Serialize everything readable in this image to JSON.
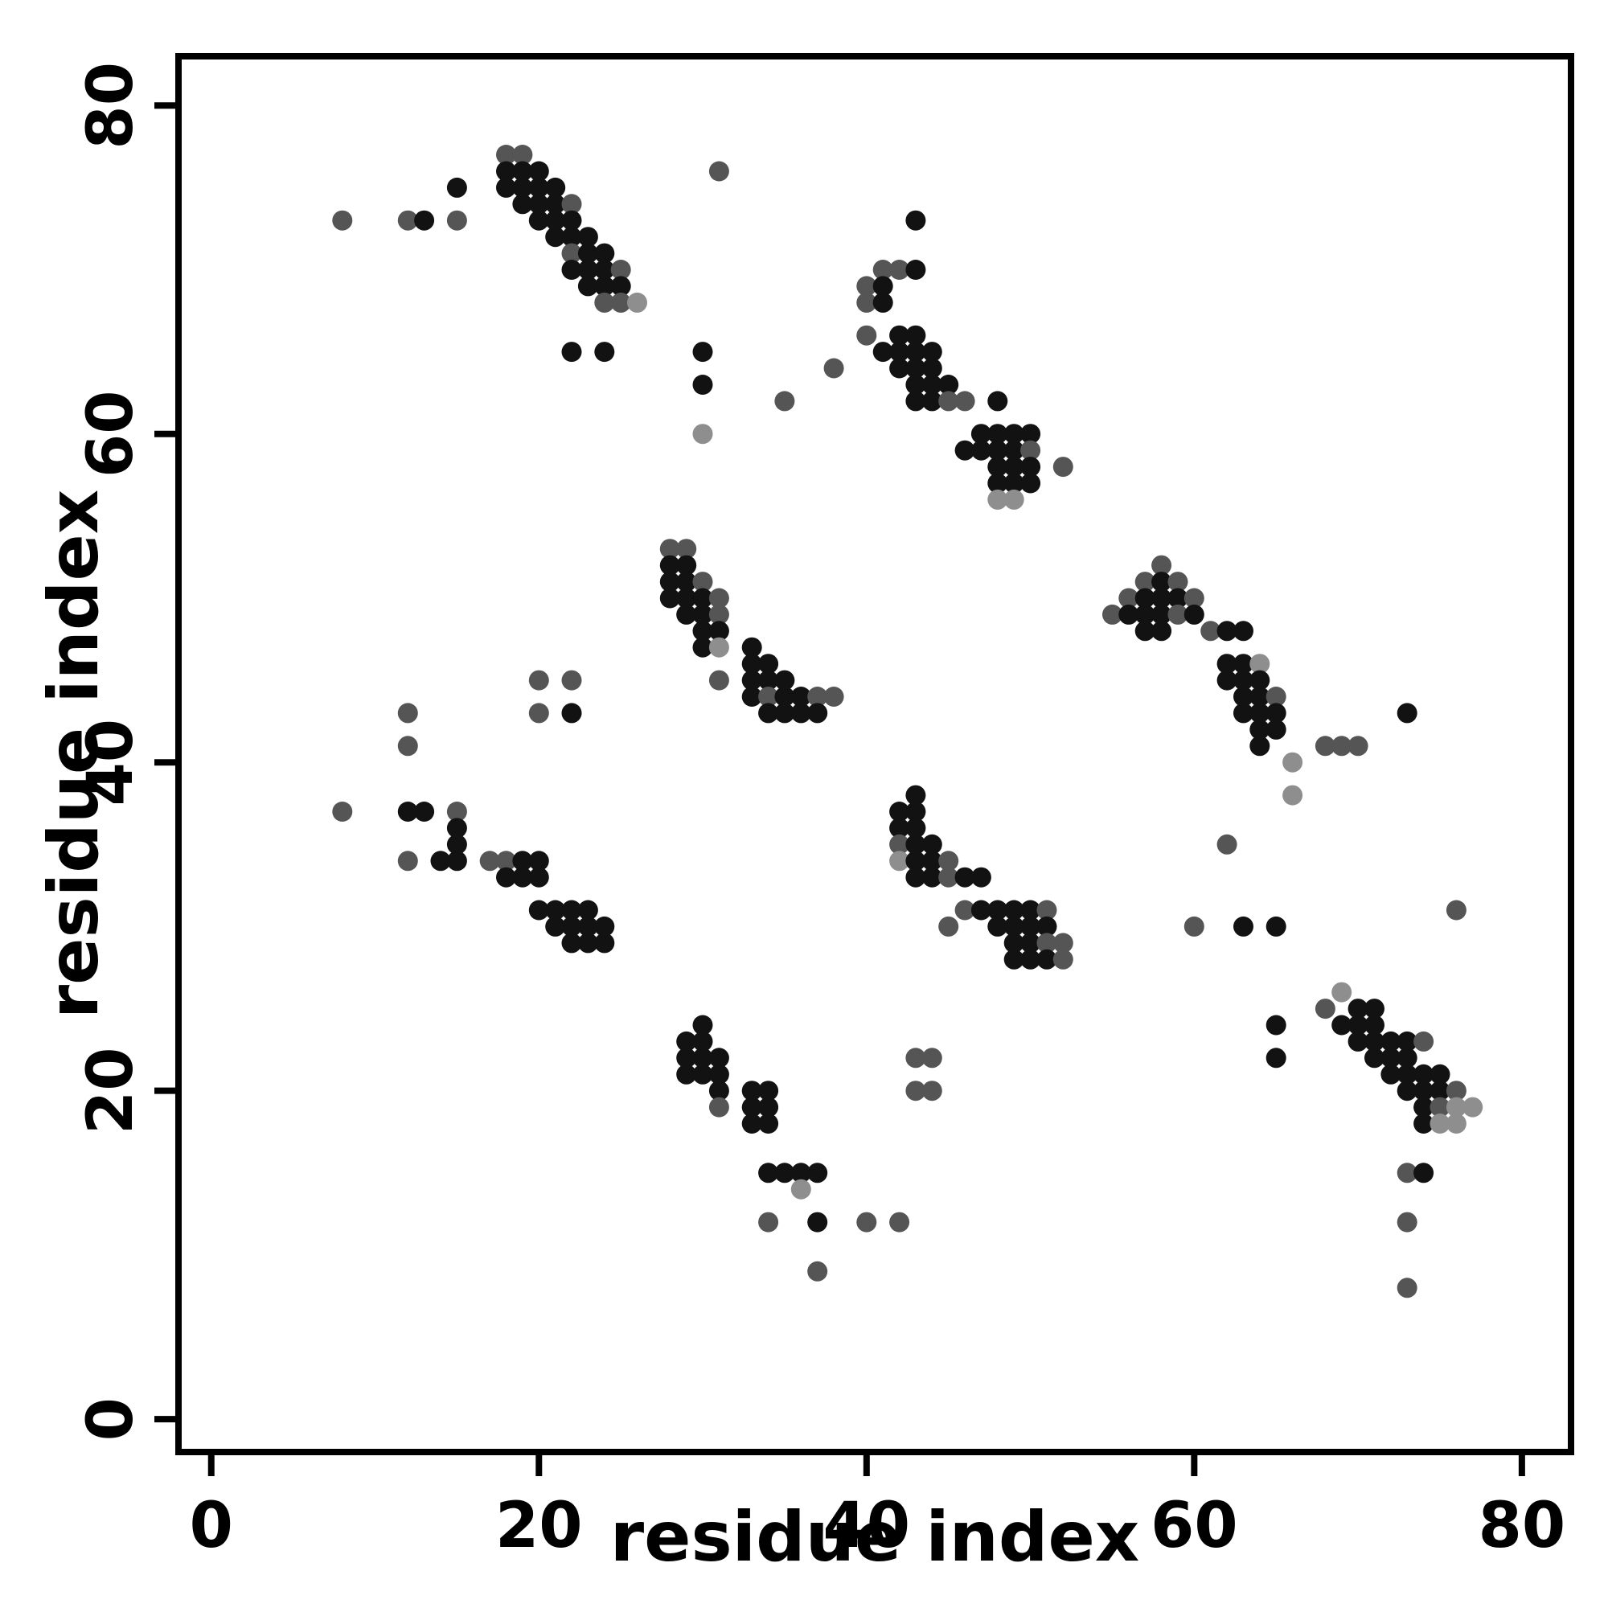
{
  "chart_data": {
    "type": "scatter",
    "title": "",
    "xlabel": "residue index",
    "ylabel": "residue index",
    "xlim": [
      -2,
      83
    ],
    "ylim": [
      -2,
      83
    ],
    "xticks": [
      0,
      20,
      40,
      60,
      80
    ],
    "yticks": [
      0,
      20,
      40,
      60,
      80
    ],
    "grid": false,
    "legend": "none",
    "marker": "filled-circle",
    "shade_levels": [
      "dark",
      "mid",
      "light"
    ],
    "shade_colors": [
      "#121212",
      "#555555",
      "#8e8e8e"
    ],
    "points": [
      [
        18,
        77,
        1
      ],
      [
        19,
        77,
        1
      ],
      [
        18,
        76,
        0
      ],
      [
        19,
        76,
        0
      ],
      [
        20,
        76,
        0
      ],
      [
        31,
        76,
        1
      ],
      [
        15,
        75,
        0
      ],
      [
        18,
        75,
        0
      ],
      [
        19,
        75,
        0
      ],
      [
        20,
        75,
        0
      ],
      [
        21,
        75,
        0
      ],
      [
        19,
        74,
        0
      ],
      [
        20,
        74,
        0
      ],
      [
        21,
        74,
        0
      ],
      [
        22,
        74,
        1
      ],
      [
        8,
        73,
        1
      ],
      [
        12,
        73,
        1
      ],
      [
        13,
        73,
        0
      ],
      [
        15,
        73,
        1
      ],
      [
        20,
        73,
        0
      ],
      [
        21,
        73,
        0
      ],
      [
        22,
        73,
        0
      ],
      [
        43,
        73,
        0
      ],
      [
        21,
        72,
        0
      ],
      [
        22,
        72,
        0
      ],
      [
        23,
        72,
        0
      ],
      [
        22,
        71,
        1
      ],
      [
        23,
        71,
        0
      ],
      [
        24,
        71,
        0
      ],
      [
        22,
        70,
        0
      ],
      [
        23,
        70,
        0
      ],
      [
        24,
        70,
        0
      ],
      [
        25,
        70,
        1
      ],
      [
        41,
        70,
        1
      ],
      [
        42,
        70,
        1
      ],
      [
        43,
        70,
        0
      ],
      [
        23,
        69,
        0
      ],
      [
        24,
        69,
        0
      ],
      [
        25,
        69,
        0
      ],
      [
        40,
        69,
        1
      ],
      [
        41,
        69,
        0
      ],
      [
        24,
        68,
        1
      ],
      [
        25,
        68,
        1
      ],
      [
        26,
        68,
        2
      ],
      [
        40,
        68,
        1
      ],
      [
        41,
        68,
        0
      ],
      [
        40,
        66,
        1
      ],
      [
        42,
        66,
        0
      ],
      [
        43,
        66,
        0
      ],
      [
        22,
        65,
        0
      ],
      [
        24,
        65,
        0
      ],
      [
        30,
        65,
        0
      ],
      [
        41,
        65,
        0
      ],
      [
        42,
        65,
        0
      ],
      [
        43,
        65,
        0
      ],
      [
        44,
        65,
        0
      ],
      [
        38,
        64,
        1
      ],
      [
        42,
        64,
        0
      ],
      [
        43,
        64,
        0
      ],
      [
        44,
        64,
        0
      ],
      [
        30,
        63,
        0
      ],
      [
        43,
        63,
        0
      ],
      [
        44,
        63,
        0
      ],
      [
        45,
        63,
        0
      ],
      [
        35,
        62,
        1
      ],
      [
        43,
        62,
        0
      ],
      [
        44,
        62,
        0
      ],
      [
        45,
        62,
        1
      ],
      [
        46,
        62,
        1
      ],
      [
        48,
        62,
        0
      ],
      [
        30,
        60,
        2
      ],
      [
        47,
        60,
        0
      ],
      [
        48,
        60,
        0
      ],
      [
        49,
        60,
        0
      ],
      [
        50,
        60,
        0
      ],
      [
        46,
        59,
        0
      ],
      [
        47,
        59,
        0
      ],
      [
        48,
        59,
        0
      ],
      [
        49,
        59,
        0
      ],
      [
        50,
        59,
        1
      ],
      [
        48,
        58,
        0
      ],
      [
        49,
        58,
        0
      ],
      [
        50,
        58,
        0
      ],
      [
        52,
        58,
        1
      ],
      [
        48,
        57,
        0
      ],
      [
        49,
        57,
        0
      ],
      [
        50,
        57,
        0
      ],
      [
        48,
        56,
        2
      ],
      [
        49,
        56,
        2
      ],
      [
        28,
        53,
        1
      ],
      [
        29,
        53,
        1
      ],
      [
        28,
        52,
        0
      ],
      [
        29,
        52,
        0
      ],
      [
        58,
        52,
        1
      ],
      [
        28,
        51,
        0
      ],
      [
        29,
        51,
        0
      ],
      [
        30,
        51,
        1
      ],
      [
        57,
        51,
        1
      ],
      [
        58,
        51,
        0
      ],
      [
        59,
        51,
        1
      ],
      [
        28,
        50,
        0
      ],
      [
        29,
        50,
        0
      ],
      [
        30,
        50,
        0
      ],
      [
        31,
        50,
        1
      ],
      [
        56,
        50,
        1
      ],
      [
        57,
        50,
        0
      ],
      [
        58,
        50,
        0
      ],
      [
        59,
        50,
        0
      ],
      [
        60,
        50,
        1
      ],
      [
        29,
        49,
        0
      ],
      [
        30,
        49,
        0
      ],
      [
        31,
        49,
        1
      ],
      [
        55,
        49,
        1
      ],
      [
        56,
        49,
        0
      ],
      [
        57,
        49,
        0
      ],
      [
        58,
        49,
        0
      ],
      [
        59,
        49,
        1
      ],
      [
        60,
        49,
        0
      ],
      [
        30,
        48,
        0
      ],
      [
        31,
        48,
        0
      ],
      [
        57,
        48,
        0
      ],
      [
        58,
        48,
        0
      ],
      [
        61,
        48,
        1
      ],
      [
        62,
        48,
        0
      ],
      [
        63,
        48,
        0
      ],
      [
        30,
        47,
        0
      ],
      [
        31,
        47,
        2
      ],
      [
        33,
        47,
        0
      ],
      [
        33,
        46,
        0
      ],
      [
        34,
        46,
        0
      ],
      [
        62,
        46,
        0
      ],
      [
        63,
        46,
        0
      ],
      [
        64,
        46,
        2
      ],
      [
        20,
        45,
        1
      ],
      [
        22,
        45,
        1
      ],
      [
        31,
        45,
        1
      ],
      [
        33,
        45,
        0
      ],
      [
        34,
        45,
        0
      ],
      [
        35,
        45,
        0
      ],
      [
        62,
        45,
        0
      ],
      [
        63,
        45,
        0
      ],
      [
        64,
        45,
        0
      ],
      [
        33,
        44,
        0
      ],
      [
        34,
        44,
        1
      ],
      [
        35,
        44,
        0
      ],
      [
        36,
        44,
        0
      ],
      [
        37,
        44,
        1
      ],
      [
        38,
        44,
        1
      ],
      [
        63,
        44,
        0
      ],
      [
        64,
        44,
        0
      ],
      [
        65,
        44,
        1
      ],
      [
        12,
        43,
        1
      ],
      [
        20,
        43,
        1
      ],
      [
        22,
        43,
        0
      ],
      [
        34,
        43,
        0
      ],
      [
        35,
        43,
        0
      ],
      [
        36,
        43,
        0
      ],
      [
        37,
        43,
        0
      ],
      [
        63,
        43,
        0
      ],
      [
        64,
        43,
        0
      ],
      [
        65,
        43,
        0
      ],
      [
        73,
        43,
        0
      ],
      [
        64,
        42,
        0
      ],
      [
        65,
        42,
        0
      ],
      [
        12,
        41,
        1
      ],
      [
        64,
        41,
        0
      ],
      [
        68,
        41,
        1
      ],
      [
        69,
        41,
        1
      ],
      [
        70,
        41,
        1
      ],
      [
        66,
        40,
        2
      ],
      [
        43,
        38,
        0
      ],
      [
        66,
        38,
        2
      ],
      [
        8,
        37,
        1
      ],
      [
        12,
        37,
        0
      ],
      [
        13,
        37,
        0
      ],
      [
        15,
        37,
        1
      ],
      [
        42,
        37,
        0
      ],
      [
        43,
        37,
        0
      ],
      [
        15,
        36,
        0
      ],
      [
        42,
        36,
        0
      ],
      [
        43,
        36,
        0
      ],
      [
        15,
        35,
        0
      ],
      [
        42,
        35,
        1
      ],
      [
        43,
        35,
        0
      ],
      [
        44,
        35,
        0
      ],
      [
        62,
        35,
        1
      ],
      [
        12,
        34,
        1
      ],
      [
        14,
        34,
        0
      ],
      [
        15,
        34,
        0
      ],
      [
        17,
        34,
        1
      ],
      [
        18,
        34,
        1
      ],
      [
        19,
        34,
        0
      ],
      [
        20,
        34,
        0
      ],
      [
        42,
        34,
        2
      ],
      [
        43,
        34,
        0
      ],
      [
        44,
        34,
        0
      ],
      [
        45,
        34,
        1
      ],
      [
        18,
        33,
        0
      ],
      [
        19,
        33,
        0
      ],
      [
        20,
        33,
        0
      ],
      [
        43,
        33,
        0
      ],
      [
        44,
        33,
        0
      ],
      [
        45,
        33,
        1
      ],
      [
        46,
        33,
        0
      ],
      [
        47,
        33,
        0
      ],
      [
        20,
        31,
        0
      ],
      [
        21,
        31,
        0
      ],
      [
        22,
        31,
        0
      ],
      [
        23,
        31,
        0
      ],
      [
        46,
        31,
        1
      ],
      [
        47,
        31,
        0
      ],
      [
        48,
        31,
        0
      ],
      [
        49,
        31,
        0
      ],
      [
        50,
        31,
        0
      ],
      [
        51,
        31,
        1
      ],
      [
        76,
        31,
        1
      ],
      [
        21,
        30,
        0
      ],
      [
        22,
        30,
        0
      ],
      [
        23,
        30,
        0
      ],
      [
        24,
        30,
        0
      ],
      [
        45,
        30,
        1
      ],
      [
        48,
        30,
        0
      ],
      [
        49,
        30,
        0
      ],
      [
        50,
        30,
        0
      ],
      [
        51,
        30,
        0
      ],
      [
        60,
        30,
        1
      ],
      [
        63,
        30,
        0
      ],
      [
        65,
        30,
        0
      ],
      [
        22,
        29,
        0
      ],
      [
        23,
        29,
        0
      ],
      [
        24,
        29,
        0
      ],
      [
        49,
        29,
        0
      ],
      [
        50,
        29,
        0
      ],
      [
        51,
        29,
        1
      ],
      [
        52,
        29,
        1
      ],
      [
        49,
        28,
        0
      ],
      [
        50,
        28,
        0
      ],
      [
        51,
        28,
        0
      ],
      [
        52,
        28,
        1
      ],
      [
        69,
        26,
        2
      ],
      [
        68,
        25,
        1
      ],
      [
        70,
        25,
        0
      ],
      [
        71,
        25,
        0
      ],
      [
        30,
        24,
        0
      ],
      [
        65,
        24,
        0
      ],
      [
        69,
        24,
        0
      ],
      [
        70,
        24,
        0
      ],
      [
        71,
        24,
        0
      ],
      [
        29,
        23,
        0
      ],
      [
        30,
        23,
        0
      ],
      [
        70,
        23,
        0
      ],
      [
        71,
        23,
        0
      ],
      [
        72,
        23,
        0
      ],
      [
        73,
        23,
        0
      ],
      [
        74,
        23,
        1
      ],
      [
        29,
        22,
        0
      ],
      [
        30,
        22,
        0
      ],
      [
        31,
        22,
        0
      ],
      [
        43,
        22,
        1
      ],
      [
        44,
        22,
        1
      ],
      [
        65,
        22,
        0
      ],
      [
        71,
        22,
        0
      ],
      [
        72,
        22,
        0
      ],
      [
        73,
        22,
        0
      ],
      [
        29,
        21,
        0
      ],
      [
        30,
        21,
        0
      ],
      [
        31,
        21,
        0
      ],
      [
        72,
        21,
        0
      ],
      [
        73,
        21,
        0
      ],
      [
        74,
        21,
        0
      ],
      [
        75,
        21,
        0
      ],
      [
        31,
        20,
        0
      ],
      [
        33,
        20,
        0
      ],
      [
        34,
        20,
        0
      ],
      [
        43,
        20,
        1
      ],
      [
        44,
        20,
        1
      ],
      [
        73,
        20,
        0
      ],
      [
        74,
        20,
        0
      ],
      [
        75,
        20,
        0
      ],
      [
        76,
        20,
        1
      ],
      [
        31,
        19,
        1
      ],
      [
        33,
        19,
        0
      ],
      [
        34,
        19,
        0
      ],
      [
        74,
        19,
        0
      ],
      [
        75,
        19,
        1
      ],
      [
        76,
        19,
        2
      ],
      [
        77,
        19,
        2
      ],
      [
        33,
        18,
        0
      ],
      [
        34,
        18,
        0
      ],
      [
        74,
        18,
        0
      ],
      [
        75,
        18,
        2
      ],
      [
        76,
        18,
        2
      ],
      [
        34,
        15,
        0
      ],
      [
        35,
        15,
        0
      ],
      [
        36,
        15,
        0
      ],
      [
        37,
        15,
        0
      ],
      [
        73,
        15,
        1
      ],
      [
        74,
        15,
        0
      ],
      [
        36,
        14,
        2
      ],
      [
        34,
        12,
        1
      ],
      [
        37,
        12,
        0
      ],
      [
        40,
        12,
        1
      ],
      [
        42,
        12,
        1
      ],
      [
        73,
        12,
        1
      ],
      [
        37,
        9,
        1
      ],
      [
        73,
        8,
        1
      ]
    ]
  }
}
